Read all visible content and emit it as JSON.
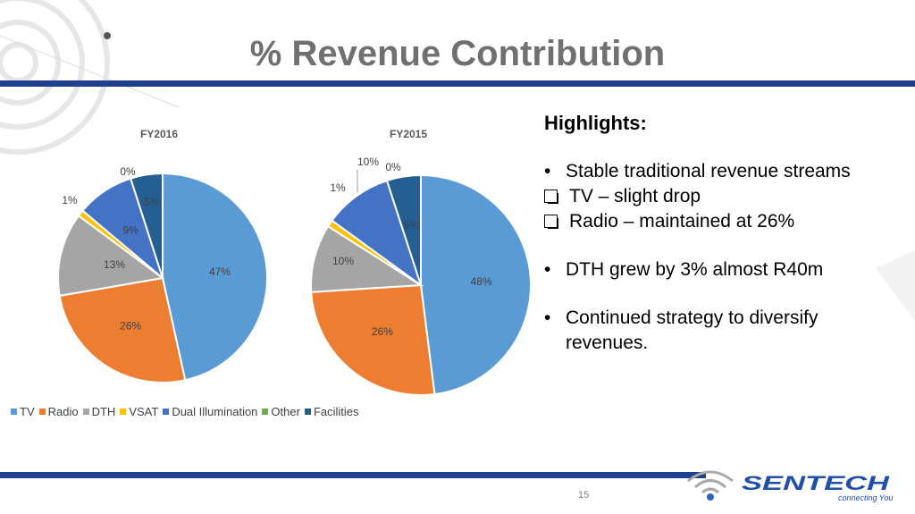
{
  "slide": {
    "title": "% Revenue Contribution",
    "page_number": "15",
    "logo": {
      "name": "SENTECH",
      "tagline": "connecting You"
    }
  },
  "highlights": {
    "heading": "Highlights:",
    "items": [
      {
        "type": "bullet",
        "text": "Stable traditional revenue streams"
      },
      {
        "type": "checkbox",
        "text": "TV – slight drop"
      },
      {
        "type": "checkbox",
        "text": "Radio – maintained at 26%"
      },
      {
        "type": "bullet",
        "text": "DTH grew by 3% almost R40m"
      },
      {
        "type": "bullet",
        "text": "Continued strategy to diversify revenues."
      }
    ]
  },
  "colors": {
    "TV": "#5b9bd5",
    "Radio": "#ed7d31",
    "DTH": "#a5a5a5",
    "VSAT": "#ffc000",
    "Dual Illumination": "#4472c4",
    "Other": "#70ad47",
    "Facilities": "#255e91"
  },
  "chart_data": [
    {
      "type": "pie",
      "title": "FY2016",
      "categories": [
        "TV",
        "Radio",
        "DTH",
        "VSAT",
        "Dual Illumination",
        "Other",
        "Facilities"
      ],
      "values": [
        47,
        26,
        13,
        1,
        9,
        0,
        5
      ],
      "labels": [
        "47%",
        "26%",
        "13%",
        "1%",
        "9%",
        "0%",
        "5%"
      ],
      "legend": "bottom"
    },
    {
      "type": "pie",
      "title": "FY2015",
      "categories": [
        "TV",
        "Radio",
        "DTH",
        "VSAT",
        "Dual Illumination",
        "Other",
        "Facilities"
      ],
      "values": [
        48,
        26,
        10,
        1,
        10,
        0,
        5
      ],
      "labels": [
        "48%",
        "26%",
        "10%",
        "1%",
        "10%",
        "0%",
        "5%"
      ],
      "legend": "bottom"
    }
  ]
}
